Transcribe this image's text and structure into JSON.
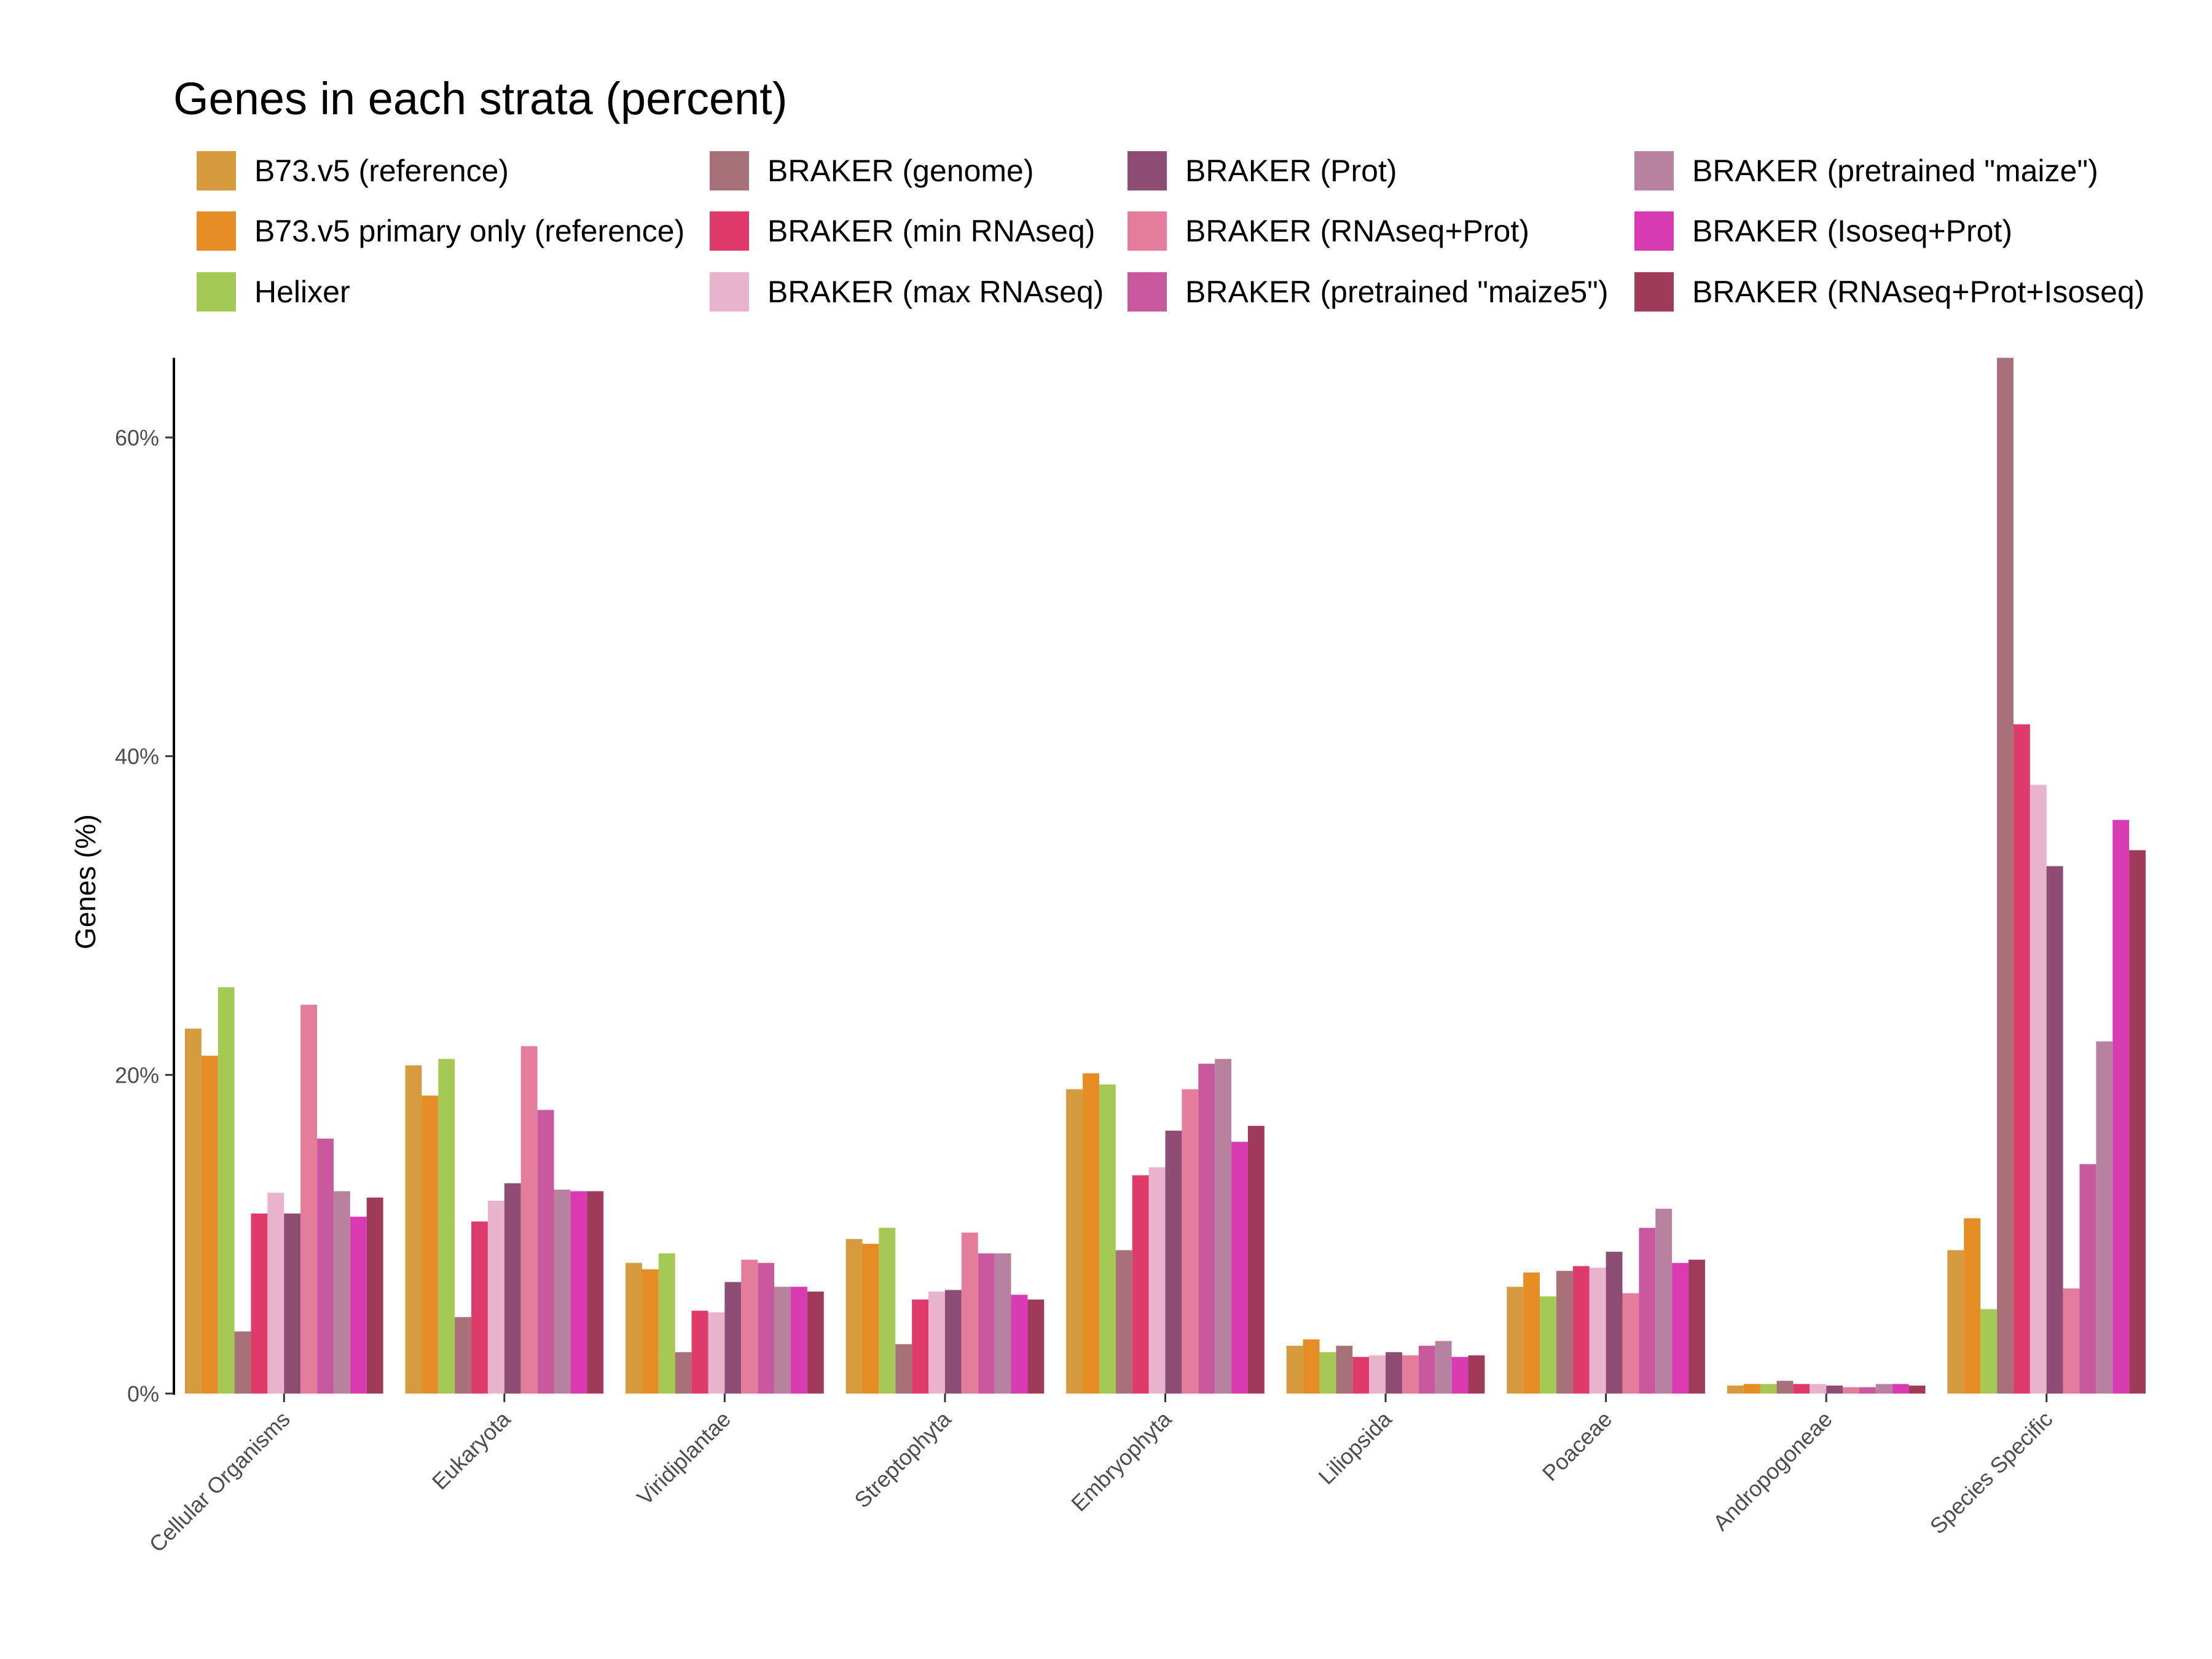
{
  "chart_data": {
    "type": "bar",
    "title": "Genes in each strata (percent)",
    "xlabel": "",
    "ylabel": "Genes (%)",
    "ylim": [
      0,
      65
    ],
    "y_ticks": [
      0,
      20,
      40,
      60
    ],
    "y_tick_labels": [
      "0%",
      "20%",
      "40%",
      "60%"
    ],
    "legend_position": "top",
    "grid": false,
    "categories": [
      "Cellular Organisms",
      "Eukaryota",
      "Viridiplantae",
      "Streptophyta",
      "Embryophyta",
      "Liliopsida",
      "Poaceae",
      "Andropogoneae",
      "Species Specific"
    ],
    "series": [
      {
        "name": "B73.v5 (reference)",
        "color": "#D69B3F",
        "values": [
          22.9,
          20.6,
          8.2,
          9.7,
          19.1,
          3.0,
          6.7,
          0.5,
          9.0
        ]
      },
      {
        "name": "B73.v5 primary only (reference)",
        "color": "#E58C24",
        "values": [
          21.2,
          18.7,
          7.8,
          9.4,
          20.1,
          3.4,
          7.6,
          0.6,
          11.0
        ]
      },
      {
        "name": "Helixer",
        "color": "#A6C956",
        "values": [
          25.5,
          21.0,
          8.8,
          10.4,
          19.4,
          2.6,
          6.1,
          0.6,
          5.3
        ]
      },
      {
        "name": "BRAKER (genome)",
        "color": "#A8717A",
        "values": [
          3.9,
          4.8,
          2.6,
          3.1,
          9.0,
          3.0,
          7.7,
          0.8,
          65.0
        ]
      },
      {
        "name": "BRAKER (min RNAseq)",
        "color": "#DE3A6A",
        "values": [
          11.3,
          10.8,
          5.2,
          5.9,
          13.7,
          2.3,
          8.0,
          0.6,
          42.0
        ]
      },
      {
        "name": "BRAKER (max RNAseq)",
        "color": "#E8B3CC",
        "values": [
          12.6,
          12.1,
          5.1,
          6.4,
          14.2,
          2.4,
          7.9,
          0.6,
          38.2
        ]
      },
      {
        "name": "BRAKER (Prot)",
        "color": "#8E4D74",
        "values": [
          11.3,
          13.2,
          7.0,
          6.5,
          16.5,
          2.6,
          8.9,
          0.5,
          33.1
        ]
      },
      {
        "name": "BRAKER (RNAseq+Prot)",
        "color": "#E47D9C",
        "values": [
          24.4,
          21.8,
          8.4,
          10.1,
          19.1,
          2.4,
          6.3,
          0.4,
          6.6
        ]
      },
      {
        "name": "BRAKER (pretrained \"maize5\")",
        "color": "#C8599E",
        "values": [
          16.0,
          17.8,
          8.2,
          8.8,
          20.7,
          3.0,
          10.4,
          0.4,
          14.4
        ]
      },
      {
        "name": "BRAKER (pretrained \"maize\")",
        "color": "#B6829F",
        "values": [
          12.7,
          12.8,
          6.7,
          8.8,
          21.0,
          3.3,
          11.6,
          0.6,
          22.1
        ]
      },
      {
        "name": "BRAKER (Isoseq+Prot)",
        "color": "#D93CB2",
        "values": [
          11.1,
          12.7,
          6.7,
          6.2,
          15.8,
          2.3,
          8.2,
          0.6,
          36.0
        ]
      },
      {
        "name": "BRAKER (RNAseq+Prot+Isoseq)",
        "color": "#A03B5B",
        "values": [
          12.3,
          12.7,
          6.4,
          5.9,
          16.8,
          2.4,
          8.4,
          0.5,
          34.1
        ]
      }
    ]
  }
}
